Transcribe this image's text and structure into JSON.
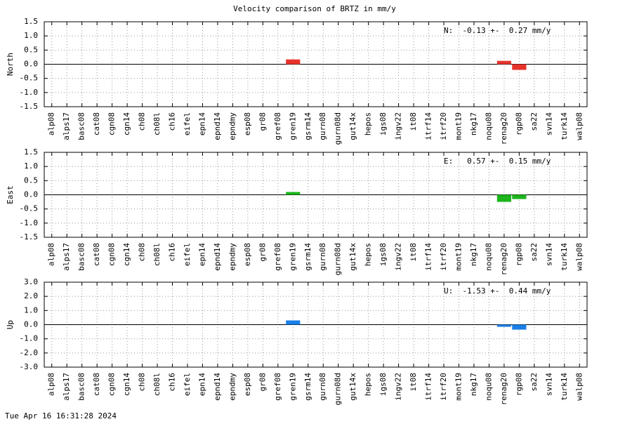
{
  "title": "Velocity comparison of BRTZ in mm/y",
  "footer": "Tue Apr 16 16:31:28 2024",
  "chart_data": [
    {
      "type": "bar",
      "ylabel": "North",
      "annotation": "N:  -0.13 +-  0.27 mm/y",
      "color": "#e8332d",
      "categories": [
        "alp08",
        "alps17",
        "basc08",
        "cat08",
        "cgn08",
        "cgn14",
        "ch08",
        "ch08l",
        "ch16",
        "eifel",
        "epn14",
        "epnd14",
        "epndmy",
        "esp08",
        "gr08",
        "gref08",
        "gren19",
        "gsrm14",
        "gurn08",
        "gurn08d",
        "gut14x",
        "hepos",
        "igs08",
        "ingv22",
        "it08",
        "itrf14",
        "itrf20",
        "mont19",
        "nkg17",
        "noqu08",
        "renag20",
        "rgp08",
        "sa22",
        "svn14",
        "turk14",
        "walp08"
      ],
      "values": [
        null,
        null,
        null,
        null,
        null,
        null,
        null,
        null,
        null,
        null,
        null,
        null,
        null,
        null,
        null,
        null,
        0.17,
        null,
        null,
        null,
        null,
        null,
        null,
        null,
        null,
        null,
        null,
        null,
        null,
        null,
        0.12,
        -0.2,
        null,
        null,
        null,
        null
      ],
      "ylim": [
        -1.5,
        1.5
      ],
      "yticks": [
        {
          "value": -1.5,
          "label": "-1.5"
        },
        {
          "value": -1,
          "label": "-1.0"
        },
        {
          "value": -0.5,
          "label": "-0.5"
        },
        {
          "value": 0,
          "label": "0.0"
        },
        {
          "value": 0.5,
          "label": "0.5"
        },
        {
          "value": 1,
          "label": "1.0"
        },
        {
          "value": 1.5,
          "label": "1.5"
        }
      ],
      "grid": true
    },
    {
      "type": "bar",
      "ylabel": "East",
      "annotation": "E:   0.57 +-  0.15 mm/y",
      "color": "#1cb51c",
      "categories": [
        "alp08",
        "alps17",
        "basc08",
        "cat08",
        "cgn08",
        "cgn14",
        "ch08",
        "ch08l",
        "ch16",
        "eifel",
        "epn14",
        "epnd14",
        "epndmy",
        "esp08",
        "gr08",
        "gref08",
        "gren19",
        "gsrm14",
        "gurn08",
        "gurn08d",
        "gut14x",
        "hepos",
        "igs08",
        "ingv22",
        "it08",
        "itrf14",
        "itrf20",
        "mont19",
        "nkg17",
        "noqu08",
        "renag20",
        "rgp08",
        "sa22",
        "svn14",
        "turk14",
        "walp08"
      ],
      "values": [
        null,
        null,
        null,
        null,
        null,
        null,
        null,
        null,
        null,
        null,
        null,
        null,
        null,
        null,
        null,
        null,
        0.1,
        null,
        null,
        null,
        null,
        null,
        null,
        null,
        null,
        null,
        null,
        null,
        null,
        null,
        -0.25,
        -0.15,
        null,
        null,
        null,
        null
      ],
      "ylim": [
        -1.5,
        1.5
      ],
      "yticks": [
        {
          "value": -1.5,
          "label": "-1.5"
        },
        {
          "value": -1,
          "label": "-1.0"
        },
        {
          "value": -0.5,
          "label": "-0.5"
        },
        {
          "value": 0,
          "label": "0.0"
        },
        {
          "value": 0.5,
          "label": "0.5"
        },
        {
          "value": 1,
          "label": "1.0"
        },
        {
          "value": 1.5,
          "label": "1.5"
        }
      ],
      "grid": true
    },
    {
      "type": "bar",
      "ylabel": "Up",
      "annotation": "U:  -1.53 +-  0.44 mm/y",
      "color": "#1a7fe8",
      "categories": [
        "alp08",
        "alps17",
        "basc08",
        "cat08",
        "cgn08",
        "cgn14",
        "ch08",
        "ch08l",
        "ch16",
        "eifel",
        "epn14",
        "epnd14",
        "epndmy",
        "esp08",
        "gr08",
        "gref08",
        "gren19",
        "gsrm14",
        "gurn08",
        "gurn08d",
        "gut14x",
        "hepos",
        "igs08",
        "ingv22",
        "it08",
        "itrf14",
        "itrf20",
        "mont19",
        "nkg17",
        "noqu08",
        "renag20",
        "rgp08",
        "sa22",
        "svn14",
        "turk14",
        "walp08"
      ],
      "values": [
        null,
        null,
        null,
        null,
        null,
        null,
        null,
        null,
        null,
        null,
        null,
        null,
        null,
        null,
        null,
        null,
        0.3,
        null,
        null,
        null,
        null,
        null,
        null,
        null,
        null,
        null,
        null,
        null,
        null,
        null,
        -0.15,
        -0.35,
        null,
        null,
        null,
        null
      ],
      "ylim": [
        -3,
        3
      ],
      "yticks": [
        {
          "value": -3,
          "label": "-3.0"
        },
        {
          "value": -2,
          "label": "-2.0"
        },
        {
          "value": -1,
          "label": "-1.0"
        },
        {
          "value": 0,
          "label": "0.0"
        },
        {
          "value": 1,
          "label": "1.0"
        },
        {
          "value": 2,
          "label": "2.0"
        },
        {
          "value": 3,
          "label": "3.0"
        }
      ],
      "grid": true
    }
  ]
}
